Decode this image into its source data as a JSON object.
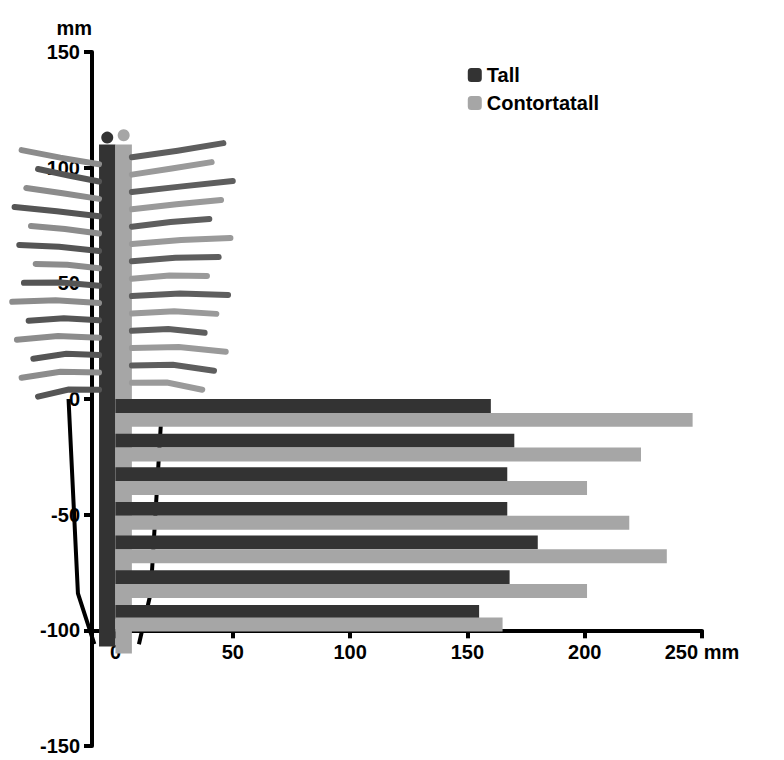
{
  "chart_data": {
    "type": "bar",
    "orientation": "horizontal",
    "ylabel": "mm",
    "series": [
      {
        "name": "Tall",
        "color": "#333333",
        "y": [
          -3,
          -18,
          -32.5,
          -47.5,
          -62,
          -77,
          -92
        ],
        "values": [
          160,
          170,
          167,
          167,
          180,
          168,
          155
        ]
      },
      {
        "name": "Contortatall",
        "color": "#a6a6a6",
        "y": [
          -9,
          -24,
          -38.5,
          -53.5,
          -68,
          -83,
          -97.5
        ],
        "values": [
          246,
          224,
          201,
          219,
          235,
          201,
          165
        ]
      }
    ],
    "xlim": [
      -10,
      250
    ],
    "xticks": [
      0,
      50,
      100,
      150,
      200,
      {
        "value": 250,
        "label": "250 mm"
      }
    ],
    "ylim": [
      -150,
      150
    ],
    "yticks": [
      -150,
      -100,
      -50,
      0,
      50,
      100,
      150
    ],
    "grid": false,
    "legend": "top-right"
  }
}
